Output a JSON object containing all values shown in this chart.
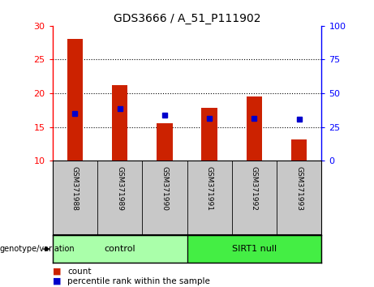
{
  "title": "GDS3666 / A_51_P111902",
  "categories": [
    "GSM371988",
    "GSM371989",
    "GSM371990",
    "GSM371991",
    "GSM371992",
    "GSM371993"
  ],
  "bar_values": [
    28.0,
    21.2,
    15.6,
    17.8,
    19.5,
    13.1
  ],
  "blue_marker_values": [
    17.0,
    17.75,
    16.8,
    16.3,
    16.3,
    16.1
  ],
  "bar_color": "#cc2200",
  "marker_color": "#0000cc",
  "ylim_left": [
    10,
    30
  ],
  "ylim_right": [
    0,
    100
  ],
  "yticks_left": [
    10,
    15,
    20,
    25,
    30
  ],
  "yticks_right": [
    0,
    25,
    50,
    75,
    100
  ],
  "groups": [
    {
      "label": "control",
      "start": 0,
      "end": 3,
      "color": "#aaffaa"
    },
    {
      "label": "SIRT1 null",
      "start": 3,
      "end": 6,
      "color": "#44ee44"
    }
  ],
  "group_label_prefix": "genotype/variation",
  "legend_count_label": "count",
  "legend_percentile_label": "percentile rank within the sample",
  "bar_width": 0.35,
  "background_color": "#ffffff",
  "plot_bg_color": "#ffffff",
  "gray_band_color": "#c8c8c8",
  "grid_color": "#000000"
}
